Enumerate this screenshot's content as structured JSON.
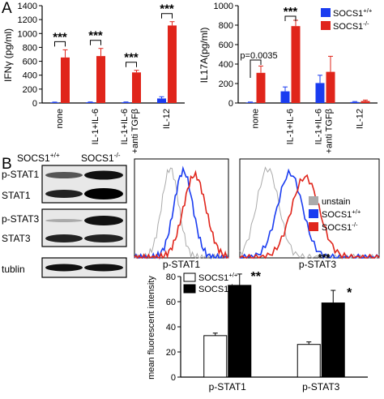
{
  "panel_a": {
    "label": "A",
    "ifn": {
      "ylabel": "IFNγ (pg/ml)",
      "yticks": [
        "0",
        "200",
        "400",
        "600",
        "800",
        "1000",
        "1200",
        "1400"
      ],
      "categories": [
        "none",
        "IL-1+IL-6",
        "IL-1+IL-6\n+anti TGFβ",
        "IL-12"
      ],
      "sig": [
        "***",
        "***",
        "***",
        "***"
      ]
    },
    "il17": {
      "ylabel": "IL17A(pg/ml)",
      "yticks": [
        "0",
        "200",
        "400",
        "600",
        "800",
        "1000"
      ],
      "categories": [
        "none",
        "IL-1+IL-6",
        "IL-1+IL-6\n+anti TGFβ",
        "IL-12"
      ],
      "pvalue": "p=0.0035",
      "sig": "***"
    },
    "legend": [
      {
        "name": "SOCS1",
        "sup": "+/+",
        "color": "#1a3cf0"
      },
      {
        "name": "SOCS1",
        "sup": "-/-",
        "color": "#e0251b"
      }
    ]
  },
  "panel_b": {
    "label": "B",
    "blot": {
      "header_wt": "SOCS1",
      "header_wt_sup": "+/+",
      "header_ko": "SOCS1",
      "header_ko_sup": "-/-",
      "bands": [
        "p-STAT1",
        "STAT1",
        "p-STAT3",
        "STAT3",
        "tublin"
      ]
    },
    "flow": {
      "xlabels": [
        "p-STAT1",
        "p-STAT3"
      ],
      "legend": [
        {
          "name": "unstain",
          "sup": "",
          "color": "#aaaaaa"
        },
        {
          "name": "SOCS1",
          "sup": "+/+",
          "color": "#1a3cf0"
        },
        {
          "name": "SOCS1",
          "sup": "-/-",
          "color": "#e0251b"
        }
      ],
      "star": "***"
    },
    "bar": {
      "ylabel": "mean fluorescent intensity",
      "yticks": [
        "0",
        "20",
        "40",
        "60",
        "80"
      ],
      "categories": [
        "p-STAT1",
        "p-STAT3"
      ],
      "sig": [
        "**",
        "*"
      ],
      "legend": [
        {
          "name": "SOCS1",
          "sup": "+/+",
          "fill": "#ffffff"
        },
        {
          "name": "SOCS1",
          "sup": "-/-",
          "fill": "#000000"
        }
      ]
    }
  },
  "chart_data": [
    {
      "type": "bar",
      "title": "",
      "ylabel": "IFNγ (pg/ml)",
      "ylim": [
        0,
        1400
      ],
      "categories": [
        "none",
        "IL-1+IL-6",
        "IL-1+IL-6 +anti TGFβ",
        "IL-12"
      ],
      "series": [
        {
          "name": "SOCS1+/+",
          "values": [
            8,
            10,
            10,
            65
          ],
          "errors": [
            5,
            5,
            5,
            25
          ]
        },
        {
          "name": "SOCS1-/-",
          "values": [
            655,
            675,
            440,
            1115
          ],
          "errors": [
            110,
            110,
            30,
            55
          ]
        }
      ]
    },
    {
      "type": "bar",
      "title": "",
      "ylabel": "IL17A(pg/ml)",
      "ylim": [
        0,
        1000
      ],
      "categories": [
        "none",
        "IL-1+IL-6",
        "IL-1+IL-6 +anti TGFβ",
        "IL-12"
      ],
      "series": [
        {
          "name": "SOCS1+/+",
          "values": [
            5,
            120,
            205,
            10
          ],
          "errors": [
            5,
            45,
            80,
            5
          ]
        },
        {
          "name": "SOCS1-/-",
          "values": [
            310,
            790,
            320,
            20
          ],
          "errors": [
            70,
            60,
            160,
            10
          ]
        }
      ]
    },
    {
      "type": "bar",
      "title": "",
      "ylabel": "mean fluorescent intensity",
      "ylim": [
        0,
        80
      ],
      "categories": [
        "p-STAT1",
        "p-STAT3"
      ],
      "series": [
        {
          "name": "SOCS1+/+",
          "values": [
            33,
            26
          ],
          "errors": [
            2,
            2
          ]
        },
        {
          "name": "SOCS1-/-",
          "values": [
            73,
            59
          ],
          "errors": [
            9,
            10
          ]
        }
      ]
    }
  ]
}
